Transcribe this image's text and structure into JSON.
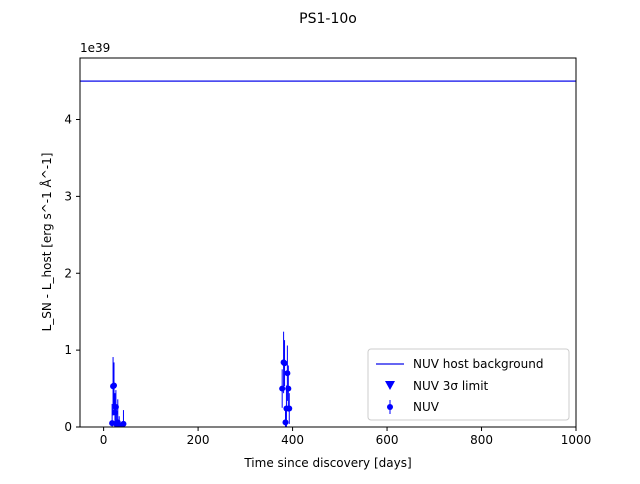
{
  "colors": {
    "series": "#0000ff",
    "host": "#3333ee",
    "axis": "#000000",
    "legend_border": "#cccccc"
  },
  "chart_data": {
    "type": "scatter",
    "title": "PS1-10o",
    "xlabel": "Time since discovery [days]",
    "ylabel": "L_SN - L_host [erg s^-1 Å^-1]",
    "offset_text": "1e39",
    "y_unit_scale": 1e+39,
    "xlim": [
      -50,
      1000
    ],
    "ylim": [
      0,
      4.8
    ],
    "x_ticks": [
      0,
      200,
      400,
      600,
      800,
      1000
    ],
    "x_tick_labels": [
      "0",
      "200",
      "400",
      "600",
      "800",
      "1000"
    ],
    "y_ticks": [
      0,
      1,
      2,
      3,
      4
    ],
    "y_tick_labels": [
      "0",
      "1",
      "2",
      "3",
      "4"
    ],
    "legend_position": "lower-right",
    "host_background": {
      "name": "NUV host background",
      "y": 4.5
    },
    "limits": {
      "name": "NUV 3σ limit",
      "points": []
    },
    "series": [
      {
        "name": "NUV",
        "points": [
          {
            "x": 18,
            "y": 0.05,
            "err": 0.25
          },
          {
            "x": 20,
            "y": 0.53,
            "err": 0.38
          },
          {
            "x": 22,
            "y": 0.54,
            "err": 0.3
          },
          {
            "x": 24,
            "y": 0.19,
            "err": 0.25
          },
          {
            "x": 26,
            "y": 0.26,
            "err": 0.22
          },
          {
            "x": 28,
            "y": 0.03,
            "err": 0.15
          },
          {
            "x": 30,
            "y": 0.06,
            "err": 0.3
          },
          {
            "x": 33,
            "y": 0.02,
            "err": 0.12
          },
          {
            "x": 42,
            "y": 0.04,
            "err": 0.18
          },
          {
            "x": 378,
            "y": 0.5,
            "err": 0.25
          },
          {
            "x": 381,
            "y": 0.84,
            "err": 0.4
          },
          {
            "x": 383,
            "y": 0.83,
            "err": 0.3
          },
          {
            "x": 385,
            "y": 0.06,
            "err": 0.2
          },
          {
            "x": 387,
            "y": 0.24,
            "err": 0.3
          },
          {
            "x": 389,
            "y": 0.7,
            "err": 0.36
          },
          {
            "x": 391,
            "y": 0.5,
            "err": 0.3
          },
          {
            "x": 393,
            "y": 0.24,
            "err": 0.2
          }
        ]
      }
    ]
  }
}
